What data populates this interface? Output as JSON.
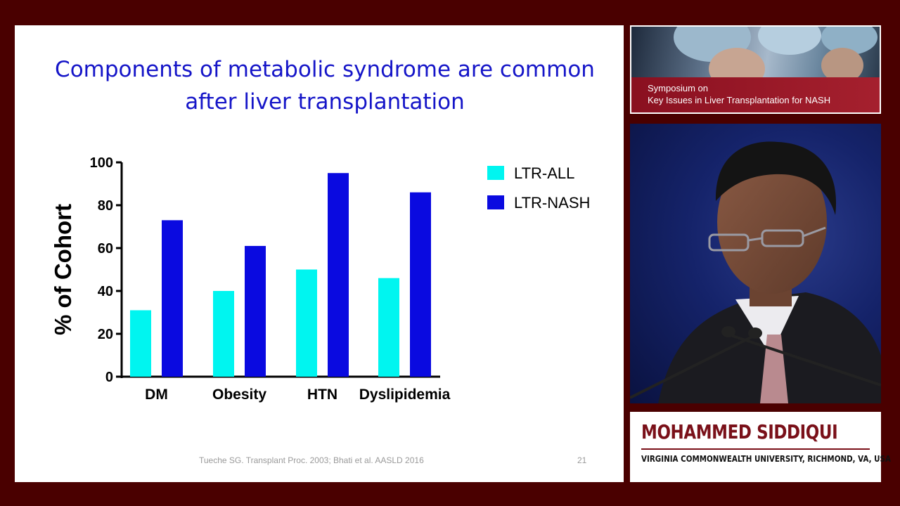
{
  "slide": {
    "title": "Components of metabolic syndrome are common\nafter liver transplantation",
    "citation": "Tueche SG. Transplant Proc. 2003; Bhati et al. AASLD 2016",
    "slide_number": "21"
  },
  "chart_data": {
    "type": "bar",
    "categories": [
      "DM",
      "Obesity",
      "HTN",
      "Dyslipidemia"
    ],
    "series": [
      {
        "name": "LTR-ALL",
        "color": "#00f5f0",
        "values": [
          31,
          40,
          50,
          46
        ]
      },
      {
        "name": "LTR-NASH",
        "color": "#0a0ae0",
        "values": [
          73,
          61,
          95,
          86
        ]
      }
    ],
    "ylabel": "% of Cohort",
    "xlabel": "",
    "ylim": [
      0,
      100
    ],
    "yticks": [
      0,
      20,
      40,
      60,
      80,
      100
    ],
    "legend_position": "top-right",
    "grid": false
  },
  "banner": {
    "caption_line1": "Symposium on",
    "caption_line2": "Key Issues in Liver Transplantation for NASH"
  },
  "speaker": {
    "name": "MOHAMMED SIDDIQUI",
    "affiliation": "VIRGINIA COMMONWEALTH UNIVERSITY, RICHMOND, VA, USA"
  }
}
